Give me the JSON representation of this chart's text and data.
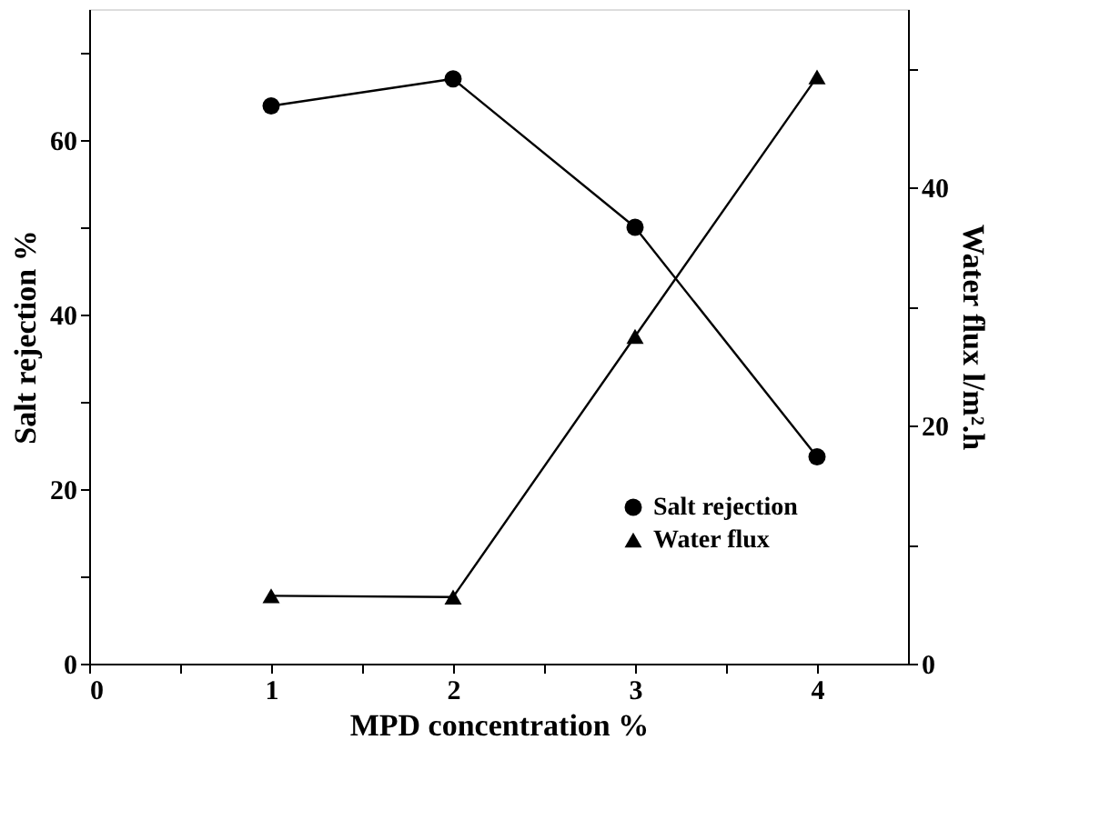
{
  "chart_data": {
    "type": "line",
    "xlabel": "MPD concentration %",
    "ylabel": "Salt rejection %",
    "y2label": "Water flux  l/m².h",
    "x": [
      1,
      2,
      3,
      4
    ],
    "series": [
      {
        "name": "Salt rejection",
        "color": "#000000",
        "marker": "circle",
        "values": [
          63.9,
          67,
          50,
          23.7
        ]
      },
      {
        "name": "Water flux",
        "color": "#000000",
        "marker": "triangle",
        "axis": "y2",
        "values": [
          5.7,
          5.6,
          27.5,
          49.3
        ]
      }
    ],
    "xlim": [
      0,
      4.5
    ],
    "xticks": [
      0,
      {
        "value": 0.5,
        "label": null
      },
      1,
      {
        "value": 1.5,
        "label": null
      },
      2,
      {
        "value": 2.5,
        "label": null
      },
      3,
      {
        "value": 3.5,
        "label": null
      },
      4
    ],
    "ylim": [
      0,
      75
    ],
    "yticks": [
      0,
      {
        "value": 10,
        "label": null
      },
      20,
      {
        "value": 30,
        "label": null
      },
      40,
      {
        "value": 50,
        "label": null
      },
      60,
      {
        "value": 70,
        "label": null
      }
    ],
    "y2lim": [
      0,
      55
    ],
    "y2ticks": [
      0,
      {
        "value": 10,
        "label": null
      },
      20,
      {
        "value": 30,
        "label": null
      },
      40,
      {
        "value": 50,
        "label": null
      }
    ],
    "grid": false,
    "legend": "bottom right",
    "line_style": "solid"
  }
}
